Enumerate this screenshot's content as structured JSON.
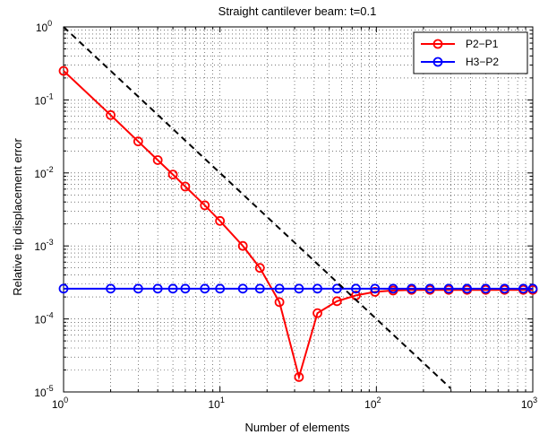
{
  "chart_data": {
    "type": "line",
    "title": "Straight cantilever beam: t=0.1",
    "xlabel": "Number of elements",
    "ylabel": "Relative tip displacement error",
    "xscale": "log",
    "yscale": "log",
    "xlim": [
      1,
      1000
    ],
    "ylim": [
      1e-05,
      1
    ],
    "x_ticks": [
      {
        "base": "10",
        "exp": "0"
      },
      {
        "base": "10",
        "exp": "1"
      },
      {
        "base": "10",
        "exp": "2"
      },
      {
        "base": "10",
        "exp": "3"
      }
    ],
    "y_ticks": [
      {
        "base": "10",
        "exp": "0"
      },
      {
        "base": "10",
        "exp": "-1"
      },
      {
        "base": "10",
        "exp": "-2"
      },
      {
        "base": "10",
        "exp": "-3"
      },
      {
        "base": "10",
        "exp": "-4"
      },
      {
        "base": "10",
        "exp": "-5"
      }
    ],
    "grid": true,
    "legend_position": "top-right",
    "series": [
      {
        "name": "P2−P1",
        "color": "#ff0000",
        "marker": "circle",
        "x": [
          1,
          2,
          3,
          4,
          5,
          6,
          8,
          10,
          14,
          18,
          24,
          32,
          42,
          56,
          74,
          98,
          128,
          168,
          220,
          290,
          380,
          500,
          660,
          870,
          1000
        ],
        "y": [
          0.25,
          0.062,
          0.027,
          0.015,
          0.0095,
          0.0065,
          0.0036,
          0.0022,
          0.001,
          0.0005,
          0.00017,
          1.6e-05,
          0.00012,
          0.000175,
          0.00021,
          0.000235,
          0.000245,
          0.00025,
          0.00025,
          0.00025,
          0.00025,
          0.00025,
          0.00025,
          0.00025,
          0.00025
        ]
      },
      {
        "name": "H3−P2",
        "color": "#0000ff",
        "marker": "circle",
        "x": [
          1,
          2,
          3,
          4,
          5,
          6,
          8,
          10,
          14,
          18,
          24,
          32,
          42,
          56,
          74,
          98,
          128,
          168,
          220,
          290,
          380,
          500,
          660,
          870,
          1000
        ],
        "y": [
          0.00026,
          0.00026,
          0.00026,
          0.00026,
          0.00026,
          0.00026,
          0.00026,
          0.00026,
          0.00026,
          0.00026,
          0.00026,
          0.00026,
          0.00026,
          0.00026,
          0.00026,
          0.00026,
          0.00026,
          0.00026,
          0.00026,
          0.00026,
          0.00026,
          0.00026,
          0.00026,
          0.00026,
          0.00026
        ]
      },
      {
        "color": "#000000",
        "style": "dashed",
        "marker": "none",
        "x": [
          1,
          300
        ],
        "y": [
          1,
          1.11e-05
        ]
      }
    ]
  }
}
